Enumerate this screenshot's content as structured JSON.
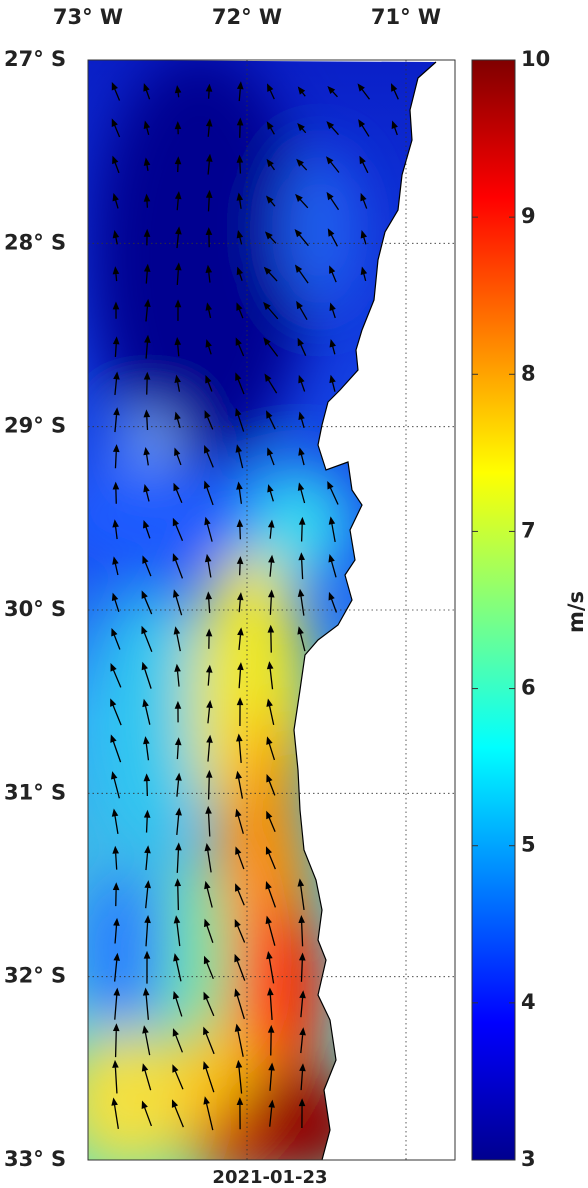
{
  "map": {
    "lon_ticks": [
      {
        "value": -73,
        "label": "73° W"
      },
      {
        "value": -72,
        "label": "72° W"
      },
      {
        "value": -71,
        "label": "71° W"
      }
    ],
    "lat_ticks": [
      {
        "value": -27,
        "label": "27° S"
      },
      {
        "value": -28,
        "label": "28° S"
      },
      {
        "value": -29,
        "label": "29° S"
      },
      {
        "value": -30,
        "label": "30° S"
      },
      {
        "value": -31,
        "label": "31° S"
      },
      {
        "value": -32,
        "label": "32° S"
      },
      {
        "value": -33,
        "label": "33° S"
      }
    ],
    "date": "2021-01-23"
  },
  "colorbar": {
    "lim": [
      3,
      10
    ],
    "ticks": [
      3,
      4,
      5,
      6,
      7,
      8,
      9,
      10
    ],
    "label": "m/s"
  }
}
